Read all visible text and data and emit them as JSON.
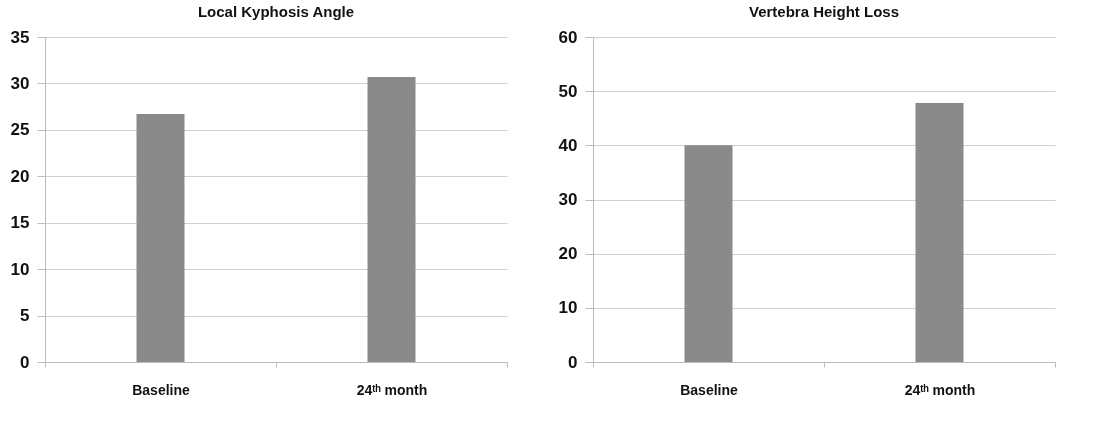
{
  "chart_data": [
    {
      "type": "bar",
      "title": "Local Kyphosis Angle",
      "categories": [
        "Baseline",
        "24ᵗʰ month"
      ],
      "values": [
        26.7,
        30.7
      ],
      "color": "#8a8a8a",
      "ylim": [
        0,
        35
      ],
      "yticks": [
        0,
        5,
        10,
        15,
        20,
        25,
        30,
        35
      ],
      "grid": "y"
    },
    {
      "type": "bar",
      "title": "Vertebra Height Loss",
      "categories": [
        "Baseline",
        "24ᵗʰ month"
      ],
      "values": [
        40,
        47.8
      ],
      "color": "#8a8a8a",
      "ylim": [
        0,
        60
      ],
      "yticks": [
        0,
        10,
        20,
        30,
        40,
        50,
        60
      ],
      "grid": "y"
    }
  ]
}
